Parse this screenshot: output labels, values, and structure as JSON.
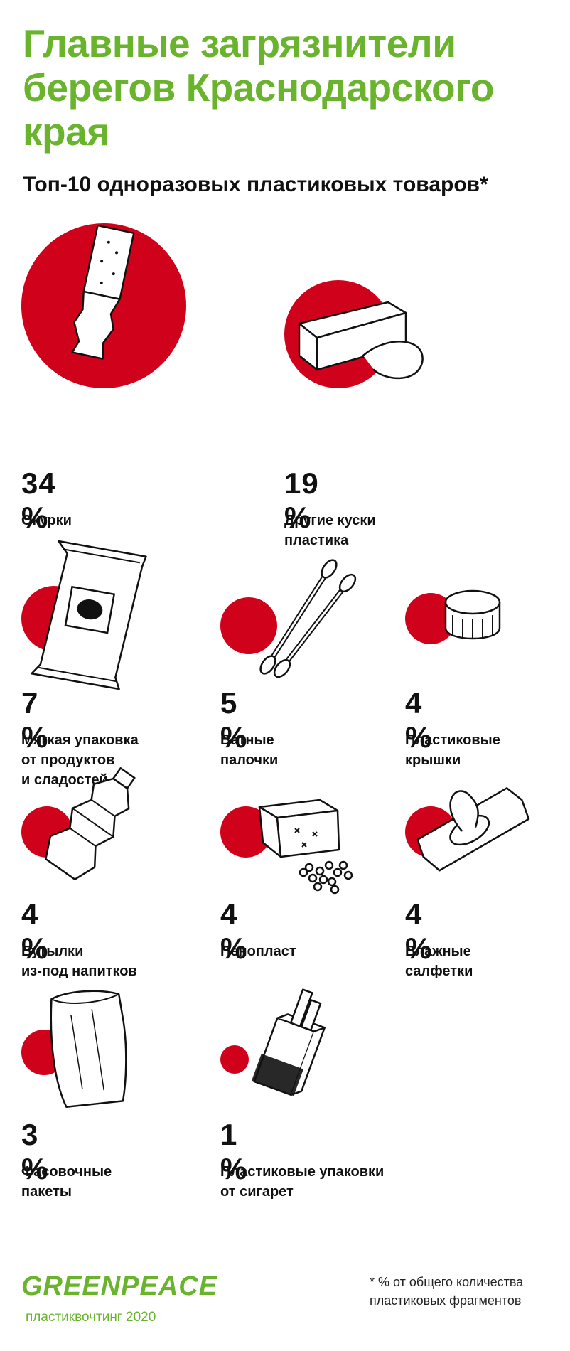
{
  "title": "Главные загрязнители берегов Краснодарского края",
  "subtitle": "Топ-10 одноразовых пластиковых товаров*",
  "colors": {
    "title_green": "#6ab42d",
    "circle_red": "#d0021b",
    "text": "#111111"
  },
  "chart_data": {
    "type": "bubble",
    "title": "Главные загрязнители берегов Краснодарского края",
    "subtitle": "Топ-10 одноразовых пластиковых товаров*",
    "unit": "%",
    "categories": [
      "Окурки",
      "Другие куски пластика",
      "Мягкая упаковка от продуктов и сладостей",
      "Ватные палочки",
      "Пластиковые крышки",
      "Бутылки из-под напитков",
      "Пенопласт",
      "Влажные салфетки",
      "Фасовочные пакеты",
      "Пластиковые упаковки от сигарет"
    ],
    "values": [
      34,
      19,
      7,
      5,
      4,
      4,
      4,
      4,
      3,
      1
    ],
    "note": "* % от общего количества пластиковых фрагментов"
  },
  "items": [
    {
      "pct": "34 %",
      "label": "Окурки",
      "icon": "cigarette-butt-icon"
    },
    {
      "pct": "19 %",
      "label": "Другие куски\nпластика",
      "icon": "plastic-piece-icon"
    },
    {
      "pct": "7 %",
      "label": "Мягкая упаковка\nот продуктов\nи сладостей",
      "icon": "snack-wrapper-icon"
    },
    {
      "pct": "5 %",
      "label": "Ватные\nпалочки",
      "icon": "cotton-swab-icon"
    },
    {
      "pct": "4 %",
      "label": "Пластиковые\nкрышки",
      "icon": "bottle-cap-icon"
    },
    {
      "pct": "4 %",
      "label": "Бутылки\nиз-под напитков",
      "icon": "crushed-bottle-icon"
    },
    {
      "pct": "4 %",
      "label": "Пенопласт",
      "icon": "styrofoam-icon"
    },
    {
      "pct": "4 %",
      "label": "Влажные\nсалфетки",
      "icon": "wet-wipes-icon"
    },
    {
      "pct": "3 %",
      "label": "Фасовочные\nпакеты",
      "icon": "plastic-bag-icon"
    },
    {
      "pct": "1 %",
      "label": "Пластиковые упаковки\nот сигарет",
      "icon": "cigarette-pack-icon"
    }
  ],
  "footer": {
    "logo": "GREENPEACE",
    "sublogo": "пластиквочтинг 2020",
    "footnote": "* % от общего количества\nпластиковых фрагментов"
  }
}
